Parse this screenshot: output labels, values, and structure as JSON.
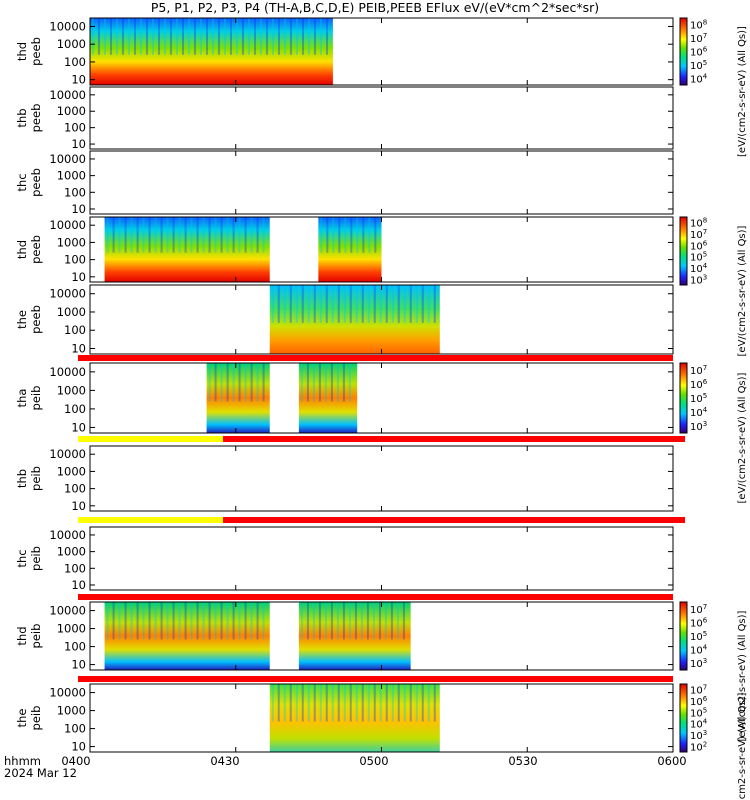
{
  "title": "P5, P1, P2, P3, P4 (TH-A,B,C,D,E) PEIB,PEEB EFlux eV/(eV*cm^2*sec*sr)",
  "x_tick_labels": [
    "0400",
    "0430",
    "0500",
    "0530",
    "0600"
  ],
  "x_footer": {
    "label": "hhmm",
    "date": "2024 Mar 12"
  },
  "y_tick_labels": [
    "10",
    "100",
    "1000",
    "10000"
  ],
  "chart_data": {
    "type": "heatmap",
    "title": "P5, P1, P2, P3, P4 (TH-A,B,C,D,E) PEIB,PEEB EFlux eV/(eV*cm^2*sec*sr)",
    "x_range": [
      "04:00",
      "06:00"
    ],
    "y_scale": "log",
    "y_range_eV": [
      5,
      30000
    ],
    "panels": [
      {
        "label1": "thd",
        "label2": "peeb",
        "ytop_label": "10000",
        "segments": [
          [
            "04:00",
            "04:50"
          ]
        ]
      },
      {
        "label1": "thb",
        "label2": "peeb",
        "segments": []
      },
      {
        "label1": "thc",
        "label2": "peeb",
        "segments": []
      },
      {
        "label1": "thd",
        "label2": "peeb",
        "segments": [
          [
            "04:03",
            "04:37"
          ],
          [
            "04:47",
            "05:00"
          ]
        ]
      },
      {
        "label1": "the",
        "label2": "peeb",
        "segments": [
          [
            "04:37",
            "05:12"
          ]
        ]
      },
      {
        "label1": "tha",
        "label2": "peib",
        "segments": [
          [
            "04:24",
            "04:37"
          ],
          [
            "04:43",
            "04:55"
          ]
        ]
      },
      {
        "label1": "thb",
        "label2": "peib",
        "segments": []
      },
      {
        "label1": "thc",
        "label2": "peib",
        "segments": []
      },
      {
        "label1": "thd",
        "label2": "peib",
        "segments": [
          [
            "04:03",
            "04:37"
          ],
          [
            "04:43",
            "05:06"
          ]
        ]
      },
      {
        "label1": "the",
        "label2": "peib",
        "segments": [
          [
            "04:37",
            "05:12"
          ]
        ]
      }
    ],
    "colorbars": [
      {
        "ticks": [
          "10^4",
          "10^5",
          "10^6",
          "10^7",
          "10^8"
        ],
        "label": "[eV/(cm2-s-sr-eV) (All Qs)]"
      },
      {
        "ticks": [
          "10^3",
          "10^4",
          "10^5",
          "10^6",
          "10^7",
          "10^8"
        ],
        "label": "[eV/(cm2-s-sr-eV) (All Qs)]"
      },
      {
        "ticks": [
          "10^3",
          "10^4",
          "10^5",
          "10^6",
          "10^7"
        ],
        "label": "[eV/(cm2-s-sr-eV) (All Qs)]"
      },
      {
        "ticks": [
          "10^3",
          "10^4",
          "10^5",
          "10^6",
          "10^7"
        ],
        "label": "[eV/(cm2-s-sr-eV) (All Qs)]"
      },
      {
        "ticks": [
          "10^2",
          "10^3",
          "10^4",
          "10^5",
          "10^6",
          "10^7"
        ],
        "label": "[eV/(cm2-s-sr-eV) (All Qs)]"
      }
    ]
  }
}
